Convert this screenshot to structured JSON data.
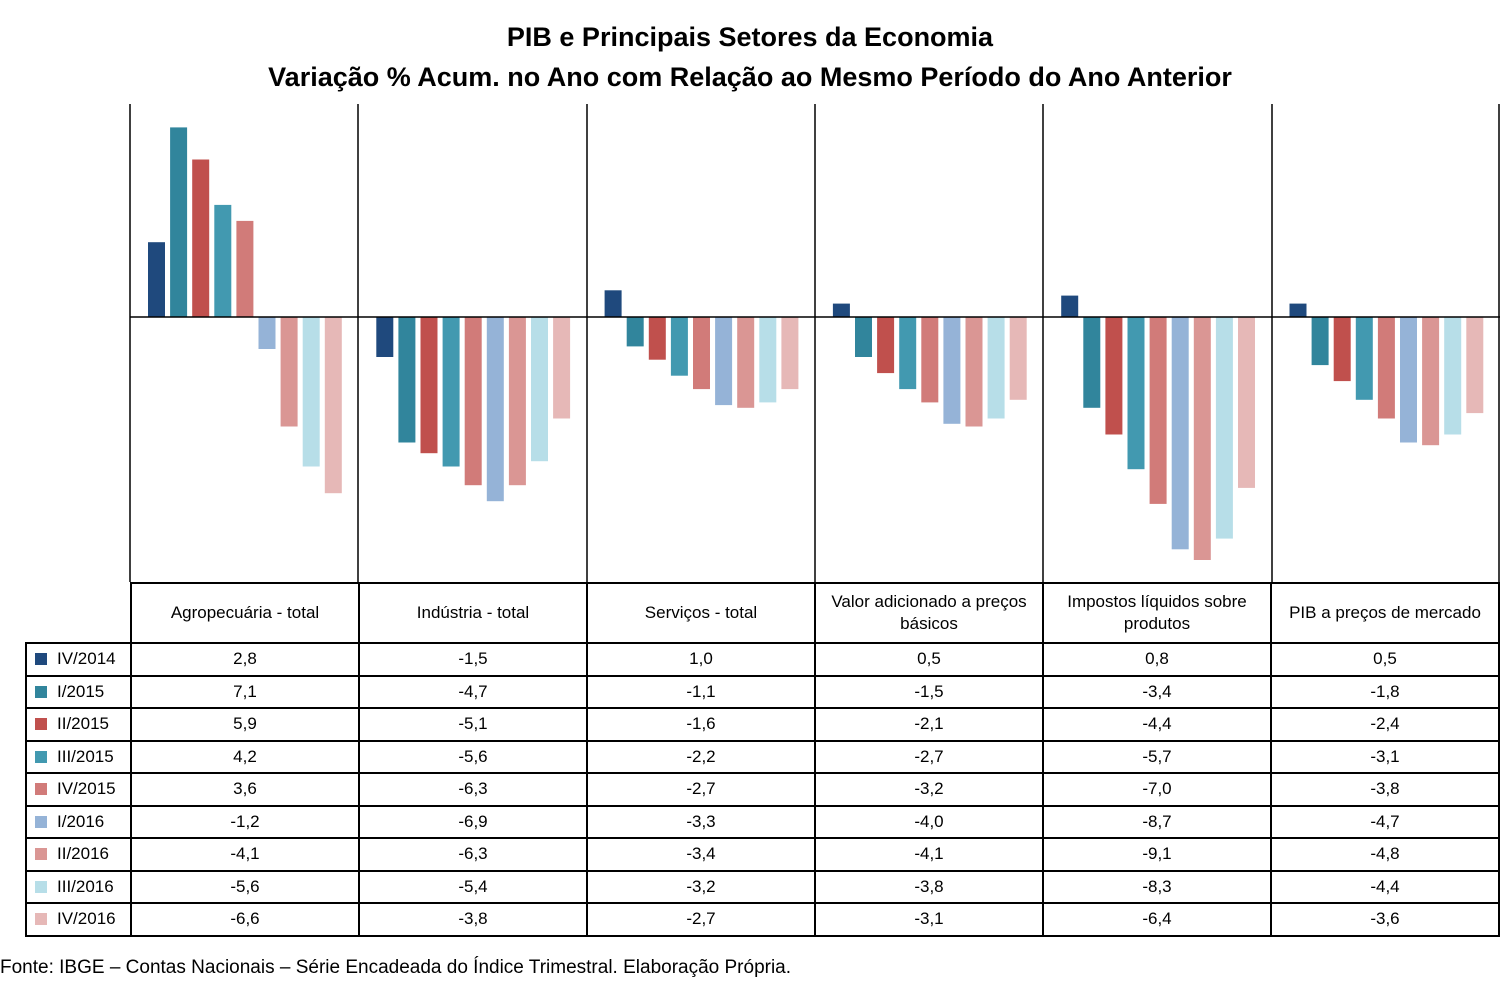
{
  "chart_data": {
    "type": "bar",
    "title": "PIB e Principais Setores da Economia",
    "subtitle": "Variação % Acum. no Ano com Relação ao Mesmo Período do Ano Anterior",
    "xlabel": "",
    "ylabel": "",
    "ylim": [
      -9.9,
      8.0
    ],
    "grid": false,
    "legend": "table-left",
    "categories": [
      "Agropecuária - total",
      "Indústria - total",
      "Serviços - total",
      "Valor adicionado a preços básicos",
      "Impostos líquidos sobre produtos",
      "PIB a preços de mercado"
    ],
    "series": [
      {
        "name": "IV/2014",
        "color": "#1F497D",
        "values": [
          2.8,
          -1.5,
          1.0,
          0.5,
          0.8,
          0.5
        ]
      },
      {
        "name": "I/2015",
        "color": "#31859C",
        "values": [
          7.1,
          -4.7,
          -1.1,
          -1.5,
          -3.4,
          -1.8
        ]
      },
      {
        "name": "II/2015",
        "color": "#C0504D",
        "values": [
          5.9,
          -5.1,
          -1.6,
          -2.1,
          -4.4,
          -2.4
        ]
      },
      {
        "name": "III/2015",
        "color": "#4299B0",
        "values": [
          4.2,
          -5.6,
          -2.2,
          -2.7,
          -5.7,
          -3.1
        ]
      },
      {
        "name": "IV/2015",
        "color": "#D17B79",
        "values": [
          3.6,
          -6.3,
          -2.7,
          -3.2,
          -7.0,
          -3.8
        ]
      },
      {
        "name": "I/2016",
        "color": "#95B3D7",
        "values": [
          -1.2,
          -6.9,
          -3.3,
          -4.0,
          -8.7,
          -4.7
        ]
      },
      {
        "name": "II/2016",
        "color": "#DA9694",
        "values": [
          -4.1,
          -6.3,
          -3.4,
          -4.1,
          -9.1,
          -4.8
        ]
      },
      {
        "name": "III/2016",
        "color": "#B7DEE8",
        "values": [
          -5.6,
          -5.4,
          -3.2,
          -3.8,
          -8.3,
          -4.4
        ]
      },
      {
        "name": "IV/2016",
        "color": "#E6B8B7",
        "values": [
          -6.6,
          -3.8,
          -2.7,
          -3.1,
          -6.4,
          -3.6
        ]
      }
    ],
    "table_display": [
      [
        "2,8",
        "-1,5",
        "1,0",
        "0,5",
        "0,8",
        "0,5"
      ],
      [
        "7,1",
        "-4,7",
        "-1,1",
        "-1,5",
        "-3,4",
        "-1,8"
      ],
      [
        "5,9",
        "-5,1",
        "-1,6",
        "-2,1",
        "-4,4",
        "-2,4"
      ],
      [
        "4,2",
        "-5,6",
        "-2,2",
        "-2,7",
        "-5,7",
        "-3,1"
      ],
      [
        "3,6",
        "-6,3",
        "-2,7",
        "-3,2",
        "-7,0",
        "-3,8"
      ],
      [
        "-1,2",
        "-6,9",
        "-3,3",
        "-4,0",
        "-8,7",
        "-4,7"
      ],
      [
        "-4,1",
        "-6,3",
        "-3,4",
        "-4,1",
        "-9,1",
        "-4,8"
      ],
      [
        "-5,6",
        "-5,4",
        "-3,2",
        "-3,8",
        "-8,3",
        "-4,4"
      ],
      [
        "-6,6",
        "-3,8",
        "-2,7",
        "-3,1",
        "-6,4",
        "-3,6"
      ]
    ]
  },
  "source": "Fonte: IBGE – Contas Nacionais – Série Encadeada do Índice Trimestral. Elaboração Própria."
}
